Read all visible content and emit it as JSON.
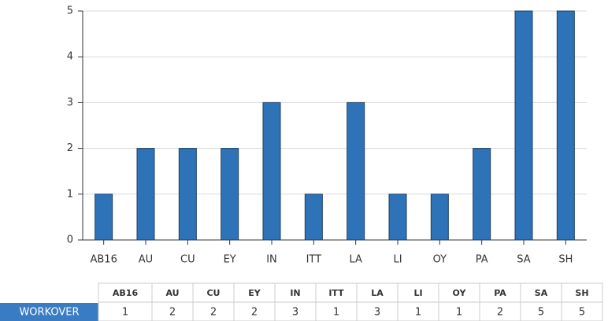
{
  "chart_data": {
    "type": "bar",
    "categories": [
      "AB16",
      "AU",
      "CU",
      "EY",
      "IN",
      "ITT",
      "LA",
      "LI",
      "OY",
      "PA",
      "SA",
      "SH"
    ],
    "series": [
      {
        "name": "WORKOVER",
        "color": "#2e72b8",
        "values": [
          1,
          2,
          2,
          2,
          3,
          1,
          3,
          1,
          1,
          2,
          5,
          5
        ]
      }
    ],
    "ylim": [
      0,
      5
    ],
    "yticks": [
      0,
      1,
      2,
      3,
      4,
      5
    ],
    "grid": true
  }
}
